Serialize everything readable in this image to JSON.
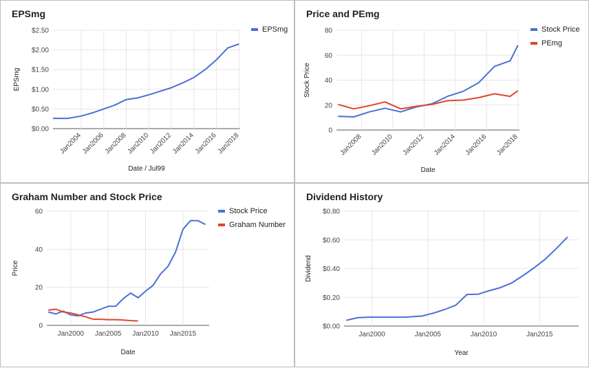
{
  "colors": {
    "blue": "#4a6fd6",
    "red": "#e0442c",
    "grid": "#e6e6e6",
    "axis": "#555555"
  },
  "chart_data": [
    {
      "type": "line",
      "title": "EPSmg",
      "xlabel": "Date / Jul99",
      "ylabel": "EPSmg",
      "xlim": [
        2001.5,
        2018.1
      ],
      "ylim": [
        0,
        2.5
      ],
      "y_ticks": [
        0,
        0.5,
        1,
        1.5,
        2,
        2.5
      ],
      "y_tick_labels": [
        "$0.00",
        "$0.50",
        "$1.00",
        "$1.50",
        "$2.00",
        "$2.50"
      ],
      "x_ticks": [
        2004,
        2006,
        2008,
        2010,
        2012,
        2014,
        2016,
        2018
      ],
      "x_tick_labels": [
        "Jan2004",
        "Jan2006",
        "Jan2008",
        "Jan2010",
        "Jan2012",
        "Jan2014",
        "Jan2016",
        "Jan2018"
      ],
      "x_tick_rotation": -45,
      "grid": true,
      "legend_position": "top-right",
      "series": [
        {
          "name": "EPSmg",
          "color": "#4a6fd6",
          "x": [
            2001.5,
            2002.8,
            2004,
            2005,
            2006,
            2007,
            2008,
            2009,
            2010,
            2011,
            2012,
            2013,
            2014,
            2015,
            2016,
            2017,
            2018
          ],
          "values": [
            0.26,
            0.26,
            0.32,
            0.4,
            0.5,
            0.6,
            0.74,
            0.78,
            0.86,
            0.95,
            1.04,
            1.16,
            1.3,
            1.5,
            1.75,
            2.05,
            2.15
          ]
        }
      ]
    },
    {
      "type": "line",
      "title": "Price and PEmg",
      "xlabel": "Date",
      "ylabel": "Stock Price",
      "xlim": [
        2006.4,
        2018.1
      ],
      "ylim": [
        0,
        80
      ],
      "y_ticks": [
        0,
        20,
        40,
        60,
        80
      ],
      "y_tick_labels": [
        "0",
        "20",
        "40",
        "60",
        "80"
      ],
      "x_ticks": [
        2008,
        2010,
        2012,
        2014,
        2016,
        2018
      ],
      "x_tick_labels": [
        "Jan2008",
        "Jan2010",
        "Jan2012",
        "Jan2014",
        "Jan2016",
        "Jan2018"
      ],
      "x_tick_rotation": -45,
      "grid": true,
      "legend_position": "top-right",
      "series": [
        {
          "name": "Stock Price",
          "color": "#4a6fd6",
          "x": [
            2006.5,
            2007.5,
            2008.5,
            2009.5,
            2010.5,
            2011.5,
            2012.5,
            2013.5,
            2014.5,
            2015.5,
            2016.5,
            2017.5,
            2018
          ],
          "values": [
            11,
            10.5,
            14.5,
            17.5,
            14.5,
            18.5,
            21,
            27,
            31,
            38,
            51,
            55.5,
            68
          ]
        },
        {
          "name": "PEmg",
          "color": "#e0442c",
          "x": [
            2006.5,
            2007.5,
            2008.5,
            2009.5,
            2010.5,
            2011.5,
            2012.5,
            2013.5,
            2014.5,
            2015.5,
            2016.5,
            2017.5,
            2018
          ],
          "values": [
            20.5,
            17,
            19.5,
            22.5,
            17,
            19,
            20.5,
            23.5,
            24,
            26,
            29,
            27,
            31.5
          ]
        }
      ]
    },
    {
      "type": "line",
      "title": "Graham Number and Stock Price",
      "xlabel": "Date",
      "ylabel": "Price",
      "xlim": [
        1996.8,
        2018.5
      ],
      "ylim": [
        0,
        60
      ],
      "y_ticks": [
        0,
        20,
        40,
        60
      ],
      "y_tick_labels": [
        "0",
        "20",
        "40",
        "60"
      ],
      "x_ticks": [
        2000,
        2005,
        2010,
        2015
      ],
      "x_tick_labels": [
        "Jan2000",
        "Jan2005",
        "Jan2010",
        "Jan2015"
      ],
      "x_tick_rotation": 0,
      "grid": true,
      "legend_position": "top-right",
      "series": [
        {
          "name": "Stock Price",
          "color": "#4a6fd6",
          "x": [
            1997,
            1998,
            1999,
            2000,
            2001,
            2002,
            2003,
            2004,
            2005,
            2006,
            2007,
            2008,
            2009,
            2010,
            2011,
            2012,
            2013,
            2014,
            2015,
            2016,
            2017,
            2018
          ],
          "values": [
            7,
            6,
            7.5,
            5.5,
            5,
            6.5,
            7,
            8.5,
            10,
            10,
            14,
            17,
            14.5,
            18,
            21,
            27,
            31,
            38.5,
            50.5,
            55,
            55,
            53
          ]
        },
        {
          "name": "Graham Number",
          "color": "#e0442c",
          "x": [
            1997,
            1998,
            1999,
            2000,
            2001,
            2002,
            2003,
            2004,
            2005,
            2006,
            2007,
            2008,
            2009
          ],
          "values": [
            8,
            8.5,
            7,
            6.5,
            5.5,
            4.5,
            3.2,
            3.2,
            3,
            3,
            2.8,
            2.5,
            2.3
          ]
        }
      ]
    },
    {
      "type": "line",
      "title": "Dividend History",
      "xlabel": "Year",
      "ylabel": "Dividend",
      "xlim": [
        1997.5,
        2018.5
      ],
      "ylim": [
        0,
        0.8
      ],
      "y_ticks": [
        0,
        0.2,
        0.4,
        0.6,
        0.8
      ],
      "y_tick_labels": [
        "$0.00",
        "$0.20",
        "$0.40",
        "$0.60",
        "$0.80"
      ],
      "x_ticks": [
        2000,
        2005,
        2010,
        2015
      ],
      "x_tick_labels": [
        "Jan2000",
        "Jan2005",
        "Jan2010",
        "Jan2015"
      ],
      "x_tick_rotation": 0,
      "grid": true,
      "legend_position": "none",
      "series": [
        {
          "color": "#4a6fd6",
          "x": [
            1997.7,
            1998.7,
            1999.7,
            2001,
            2003,
            2004.5,
            2005.5,
            2006.5,
            2007.5,
            2008.5,
            2009.5,
            2010.5,
            2011.5,
            2012.5,
            2013.5,
            2014.5,
            2015.5,
            2016.5,
            2017.5
          ],
          "values": [
            0.04,
            0.058,
            0.062,
            0.062,
            0.062,
            0.07,
            0.09,
            0.115,
            0.145,
            0.22,
            0.222,
            0.246,
            0.268,
            0.3,
            0.35,
            0.405,
            0.465,
            0.54,
            0.62
          ]
        }
      ]
    }
  ]
}
